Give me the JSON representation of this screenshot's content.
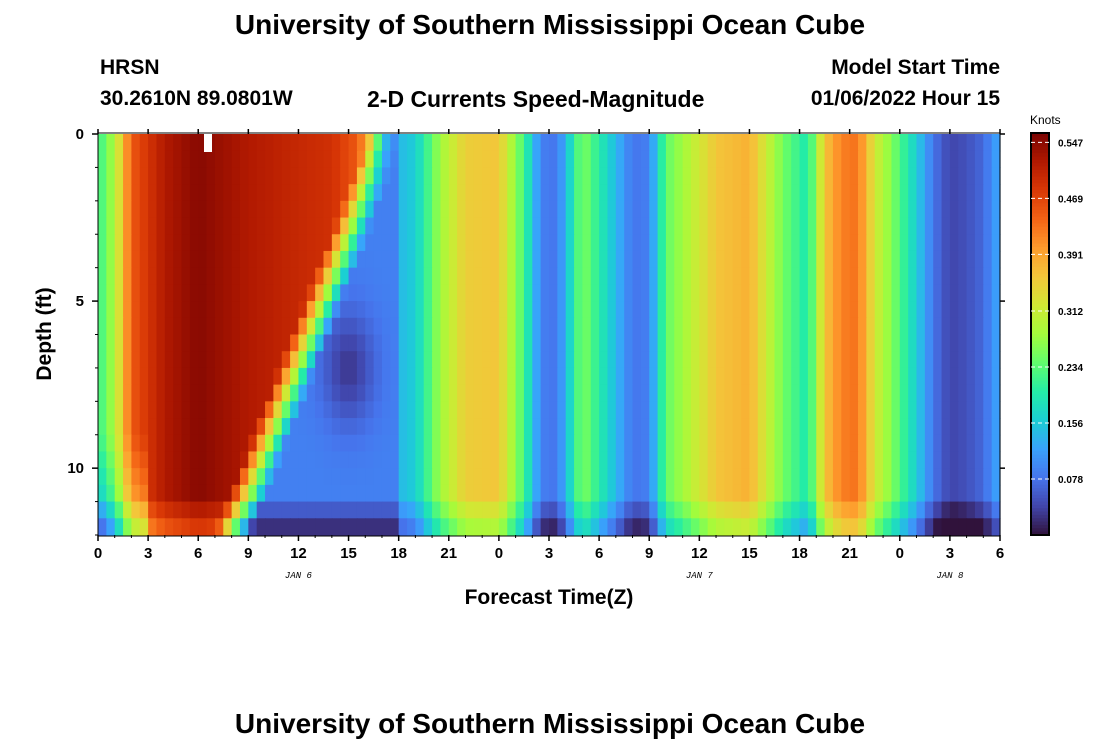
{
  "header": {
    "title": "University of Southern Mississippi Ocean Cube",
    "station": "HRSN",
    "coords": "30.2610N  89.0801W",
    "plot_name": "2-D Currents Speed-Magnitude",
    "model_label": "Model Start Time",
    "model_time": "01/06/2022 Hour 15"
  },
  "footer": {
    "title": "University of Southern Mississippi Ocean Cube"
  },
  "colors": {
    "colormap": [
      "#30123b",
      "#4145ab",
      "#4675ed",
      "#39a2fc",
      "#1bcfd4",
      "#24eca6",
      "#61fc6c",
      "#a4fc3b",
      "#d1e834",
      "#f3c63a",
      "#fe9b2d",
      "#f36315",
      "#d93806",
      "#b11901",
      "#7a0402"
    ]
  },
  "chart_data": {
    "type": "heatmap",
    "title": "2-D Currents Speed-Magnitude",
    "xlabel": "Forecast Time(Z)",
    "ylabel": "Depth (ft)",
    "x_range_hours": [
      0,
      54
    ],
    "y_range_ft": [
      0,
      12
    ],
    "x_tick_labels": [
      "0",
      "3",
      "6",
      "9",
      "12",
      "15",
      "18",
      "21",
      "0",
      "3",
      "6",
      "9",
      "12",
      "15",
      "18",
      "21",
      "0",
      "3",
      "6"
    ],
    "y_tick_labels": [
      "0",
      "5",
      "10"
    ],
    "day_labels": [
      {
        "label": "JAN 6",
        "hour": 12
      },
      {
        "label": "JAN 7",
        "hour": 36
      },
      {
        "label": "JAN 8",
        "hour": 51
      }
    ],
    "colorbar": {
      "unit": "Knots",
      "min": 0.0,
      "max": 0.56,
      "tick_labels": [
        "0.547",
        "0.469",
        "0.391",
        "0.312",
        "0.234",
        "0.156",
        "0.078"
      ],
      "tick_values": [
        0.547,
        0.469,
        0.391,
        0.312,
        0.234,
        0.156,
        0.078
      ]
    },
    "surface_speed_profile": {
      "hours": [
        0,
        1,
        2,
        4,
        6,
        9,
        12,
        14,
        15.5,
        16.5,
        17.5,
        19,
        20.5,
        22,
        24,
        25.5,
        26.5,
        27.5,
        29,
        30.5,
        32,
        33,
        34,
        35.5,
        37,
        39,
        41,
        42.5,
        43.5,
        44.5,
        45.5,
        46.5,
        47.5,
        49,
        50,
        51,
        52,
        53,
        54
      ],
      "knots": [
        0.21,
        0.29,
        0.45,
        0.52,
        0.55,
        0.52,
        0.5,
        0.49,
        0.45,
        0.35,
        0.13,
        0.16,
        0.28,
        0.35,
        0.36,
        0.22,
        0.09,
        0.08,
        0.26,
        0.17,
        0.08,
        0.09,
        0.24,
        0.3,
        0.36,
        0.38,
        0.25,
        0.19,
        0.36,
        0.42,
        0.43,
        0.32,
        0.26,
        0.16,
        0.08,
        0.04,
        0.05,
        0.07,
        0.13
      ]
    }
  }
}
